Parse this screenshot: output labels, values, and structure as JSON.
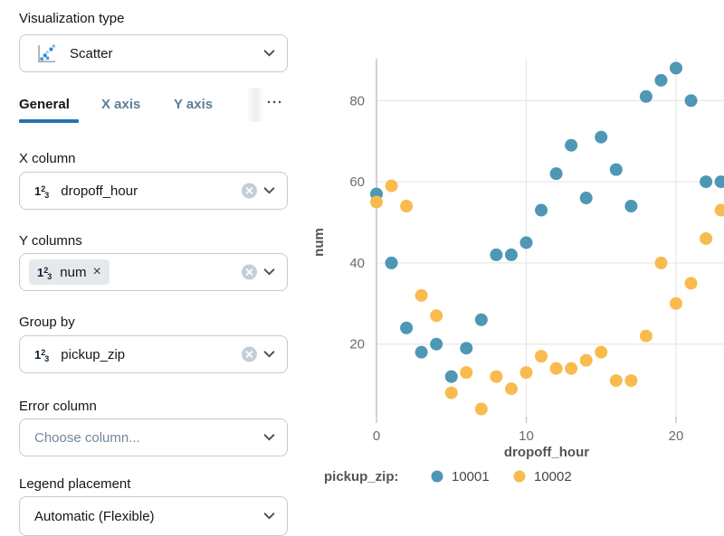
{
  "panel": {
    "visualization_type": {
      "label": "Visualization type",
      "value": "Scatter"
    },
    "tabs": [
      {
        "label": "General",
        "active": true
      },
      {
        "label": "X axis",
        "active": false
      },
      {
        "label": "Y axis",
        "active": false
      },
      {
        "label": "···",
        "active": false
      }
    ],
    "icons": {
      "number": {
        "d1": "1",
        "d2": "2",
        "d3": "3"
      }
    },
    "fields": {
      "x_column": {
        "label": "X column",
        "value": "dropoff_hour",
        "type_icon": "number-type-icon"
      },
      "y_columns": {
        "label": "Y columns",
        "chip_value": "num",
        "remove_glyph": "×",
        "type_icon": "number-type-icon"
      },
      "group_by": {
        "label": "Group by",
        "value": "pickup_zip",
        "type_icon": "number-type-icon"
      },
      "error_column": {
        "label": "Error column",
        "placeholder": "Choose column..."
      },
      "legend_placement": {
        "label": "Legend placement",
        "value": "Automatic (Flexible)"
      }
    }
  },
  "colors": {
    "accent_blue": "#2272b4",
    "series_10001": "#4e97b5",
    "series_10002": "#f9bb4d",
    "gridline": "#e9e9e9",
    "axis_line": "#c2c6ca",
    "tick_text": "#6b6b6b",
    "axis_title_text": "#545454",
    "chip_bg": "#e5e9ee",
    "border": "#c3ccd4"
  },
  "chart_data": {
    "type": "scatter",
    "xlabel": "dropoff_hour",
    "ylabel": "num",
    "legend_title": "pickup_zip:",
    "x_ticks": [
      0,
      10,
      20
    ],
    "y_ticks": [
      20,
      40,
      60,
      80
    ],
    "xlim": [
      -0.6,
      23.3
    ],
    "ylim": [
      0,
      92
    ],
    "grid": true,
    "legend_position": "bottom",
    "series": [
      {
        "name": "10001",
        "color": "#4e97b5",
        "points": [
          [
            0,
            57
          ],
          [
            1,
            40
          ],
          [
            2,
            24
          ],
          [
            3,
            18
          ],
          [
            4,
            20
          ],
          [
            5,
            12
          ],
          [
            6,
            19
          ],
          [
            7,
            26
          ],
          [
            8,
            42
          ],
          [
            9,
            42
          ],
          [
            10,
            45
          ],
          [
            11,
            53
          ],
          [
            12,
            62
          ],
          [
            13,
            69
          ],
          [
            14,
            56
          ],
          [
            15,
            71
          ],
          [
            16,
            63
          ],
          [
            17,
            54
          ],
          [
            18,
            81
          ],
          [
            19,
            85
          ],
          [
            20,
            88
          ],
          [
            21,
            80
          ],
          [
            22,
            60
          ],
          [
            23,
            60
          ]
        ]
      },
      {
        "name": "10002",
        "color": "#f9bb4d",
        "points": [
          [
            0,
            55
          ],
          [
            1,
            59
          ],
          [
            2,
            54
          ],
          [
            3,
            32
          ],
          [
            4,
            27
          ],
          [
            5,
            8
          ],
          [
            6,
            13
          ],
          [
            7,
            4
          ],
          [
            8,
            12
          ],
          [
            9,
            9
          ],
          [
            10,
            13
          ],
          [
            11,
            17
          ],
          [
            12,
            14
          ],
          [
            13,
            14
          ],
          [
            14,
            16
          ],
          [
            15,
            18
          ],
          [
            16,
            11
          ],
          [
            17,
            11
          ],
          [
            18,
            22
          ],
          [
            19,
            40
          ],
          [
            20,
            30
          ],
          [
            21,
            35
          ],
          [
            22,
            46
          ],
          [
            23,
            53
          ]
        ]
      }
    ]
  }
}
